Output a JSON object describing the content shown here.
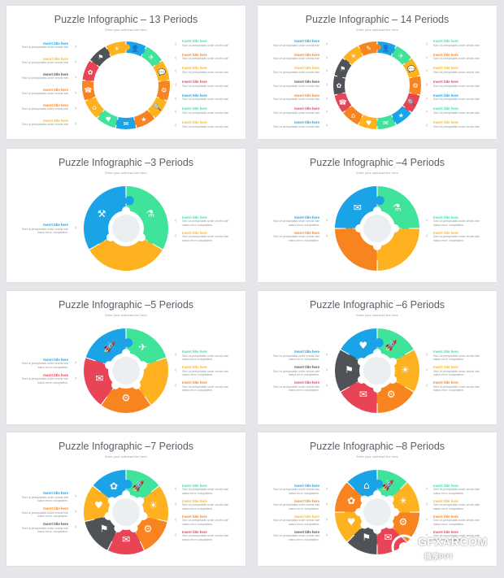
{
  "label_title": "Insert title here",
  "label_body": [
    "Sed ut perspiciatis unde omnis iste",
    "natus error voluptatem."
  ],
  "colors": {
    "orange": "#f7841f",
    "yellow": "#ffb21f",
    "green": "#3fe39a",
    "blue": "#1aa3e6",
    "red": "#e84455",
    "dark": "#4f5358",
    "hub": "#eceff2"
  },
  "slides": [
    {
      "title": "Puzzle Infographic – 13 Periods",
      "subtitle": "Enter your subhead line here",
      "segments": [
        "blue",
        "green",
        "yellow",
        "orange",
        "yellow",
        "orange",
        "blue",
        "green",
        "yellow",
        "orange",
        "red",
        "dark",
        "yellow"
      ],
      "icons": [
        "👤",
        "✈",
        "💬",
        "⚙",
        "🔍",
        "★",
        "✉",
        "♥",
        "⌂",
        "☎",
        "✿",
        "⚑",
        "☀"
      ],
      "left_labels": [
        [
          "blue",
          false
        ],
        [
          "yellow",
          false
        ],
        [
          "dark",
          false
        ],
        [
          "orange",
          false
        ],
        [
          "orange",
          false
        ],
        [
          "yellow",
          false
        ]
      ],
      "right_labels": [
        [
          "green",
          false
        ],
        [
          "orange",
          false
        ],
        [
          "yellow",
          false
        ],
        [
          "red",
          false
        ],
        [
          "blue",
          false
        ],
        [
          "green",
          false
        ],
        [
          "yellow",
          false
        ]
      ]
    },
    {
      "title": "Puzzle Infographic – 14 Periods",
      "subtitle": "Enter your subhead line here",
      "segments": [
        "blue",
        "green",
        "yellow",
        "orange",
        "red",
        "blue",
        "green",
        "yellow",
        "orange",
        "red",
        "dark",
        "dark",
        "yellow",
        "orange"
      ],
      "icons": [
        "👤",
        "✈",
        "💬",
        "⚙",
        "🔍",
        "★",
        "✉",
        "♥",
        "⌂",
        "☎",
        "✿",
        "⚑",
        "☀",
        "✎"
      ],
      "left_labels": [
        [
          "blue",
          false
        ],
        [
          "orange",
          false
        ],
        [
          "yellow",
          false
        ],
        [
          "dark",
          false
        ],
        [
          "orange",
          false
        ],
        [
          "red",
          false
        ],
        [
          "blue",
          false
        ]
      ],
      "right_labels": [
        [
          "green",
          false
        ],
        [
          "orange",
          false
        ],
        [
          "yellow",
          false
        ],
        [
          "red",
          false
        ],
        [
          "blue",
          false
        ],
        [
          "green",
          false
        ],
        [
          "yellow",
          false
        ]
      ]
    },
    {
      "title": "Puzzle Infographic –3 Periods",
      "subtitle": "Enter your subhead line here",
      "segments": [
        "green",
        "yellow",
        "blue"
      ],
      "icons": [
        "⚗",
        "",
        "⚒"
      ],
      "left_labels": [
        [
          "blue",
          true
        ]
      ],
      "right_labels": [
        [
          "green",
          true
        ],
        [
          "yellow",
          true
        ]
      ]
    },
    {
      "title": "Puzzle Infographic –4 Periods",
      "subtitle": "Enter your subhead line here",
      "segments": [
        "green",
        "yellow",
        "orange",
        "blue"
      ],
      "icons": [
        "⚗",
        "",
        "",
        "✉"
      ],
      "left_labels": [
        [
          "blue",
          true
        ],
        [
          "orange",
          true
        ]
      ],
      "right_labels": [
        [
          "green",
          true
        ],
        [
          "yellow",
          true
        ]
      ]
    },
    {
      "title": "Puzzle Infographic –5 Periods",
      "subtitle": "Enter your subhead line here",
      "segments": [
        "green",
        "yellow",
        "orange",
        "red",
        "blue"
      ],
      "icons": [
        "✈",
        "",
        "⚙",
        "✉",
        "🚀"
      ],
      "left_labels": [
        [
          "blue",
          true
        ],
        [
          "red",
          true
        ]
      ],
      "right_labels": [
        [
          "green",
          true
        ],
        [
          "yellow",
          true
        ],
        [
          "orange",
          true
        ]
      ]
    },
    {
      "title": "Puzzle Infographic –6 Periods",
      "subtitle": "Enter your subhead line here",
      "segments": [
        "green",
        "yellow",
        "orange",
        "red",
        "dark",
        "blue"
      ],
      "icons": [
        "🚀",
        "☀",
        "⚙",
        "✉",
        "⚑",
        "♥"
      ],
      "left_labels": [
        [
          "blue",
          true
        ],
        [
          "dark",
          true
        ],
        [
          "red",
          true
        ]
      ],
      "right_labels": [
        [
          "green",
          true
        ],
        [
          "yellow",
          true
        ],
        [
          "orange",
          true
        ]
      ]
    },
    {
      "title": "Puzzle Infographic –7 Periods",
      "subtitle": "Enter your subhead line here",
      "segments": [
        "green",
        "yellow",
        "orange",
        "red",
        "dark",
        "yellow",
        "blue"
      ],
      "icons": [
        "🚀",
        "☀",
        "⚙",
        "✉",
        "⚑",
        "♥",
        "✿"
      ],
      "left_labels": [
        [
          "blue",
          true
        ],
        [
          "orange",
          true
        ],
        [
          "dark",
          true
        ]
      ],
      "right_labels": [
        [
          "green",
          true
        ],
        [
          "yellow",
          true
        ],
        [
          "orange",
          true
        ],
        [
          "red",
          true
        ]
      ]
    },
    {
      "title": "Puzzle Infographic –8 Periods",
      "subtitle": "Enter your subhead line here",
      "segments": [
        "green",
        "yellow",
        "orange",
        "red",
        "dark",
        "yellow",
        "orange",
        "blue"
      ],
      "icons": [
        "🚀",
        "☀",
        "⚙",
        "✉",
        "⚑",
        "♥",
        "✿",
        "⌂"
      ],
      "left_labels": [
        [
          "blue",
          true
        ],
        [
          "orange",
          true
        ],
        [
          "yellow",
          true
        ],
        [
          "dark",
          true
        ]
      ],
      "right_labels": [
        [
          "green",
          true
        ],
        [
          "yellow",
          true
        ],
        [
          "orange",
          true
        ],
        [
          "red",
          true
        ]
      ]
    }
  ],
  "watermark": {
    "text": "GFXARCOM",
    "subtext": "微享PPT"
  }
}
